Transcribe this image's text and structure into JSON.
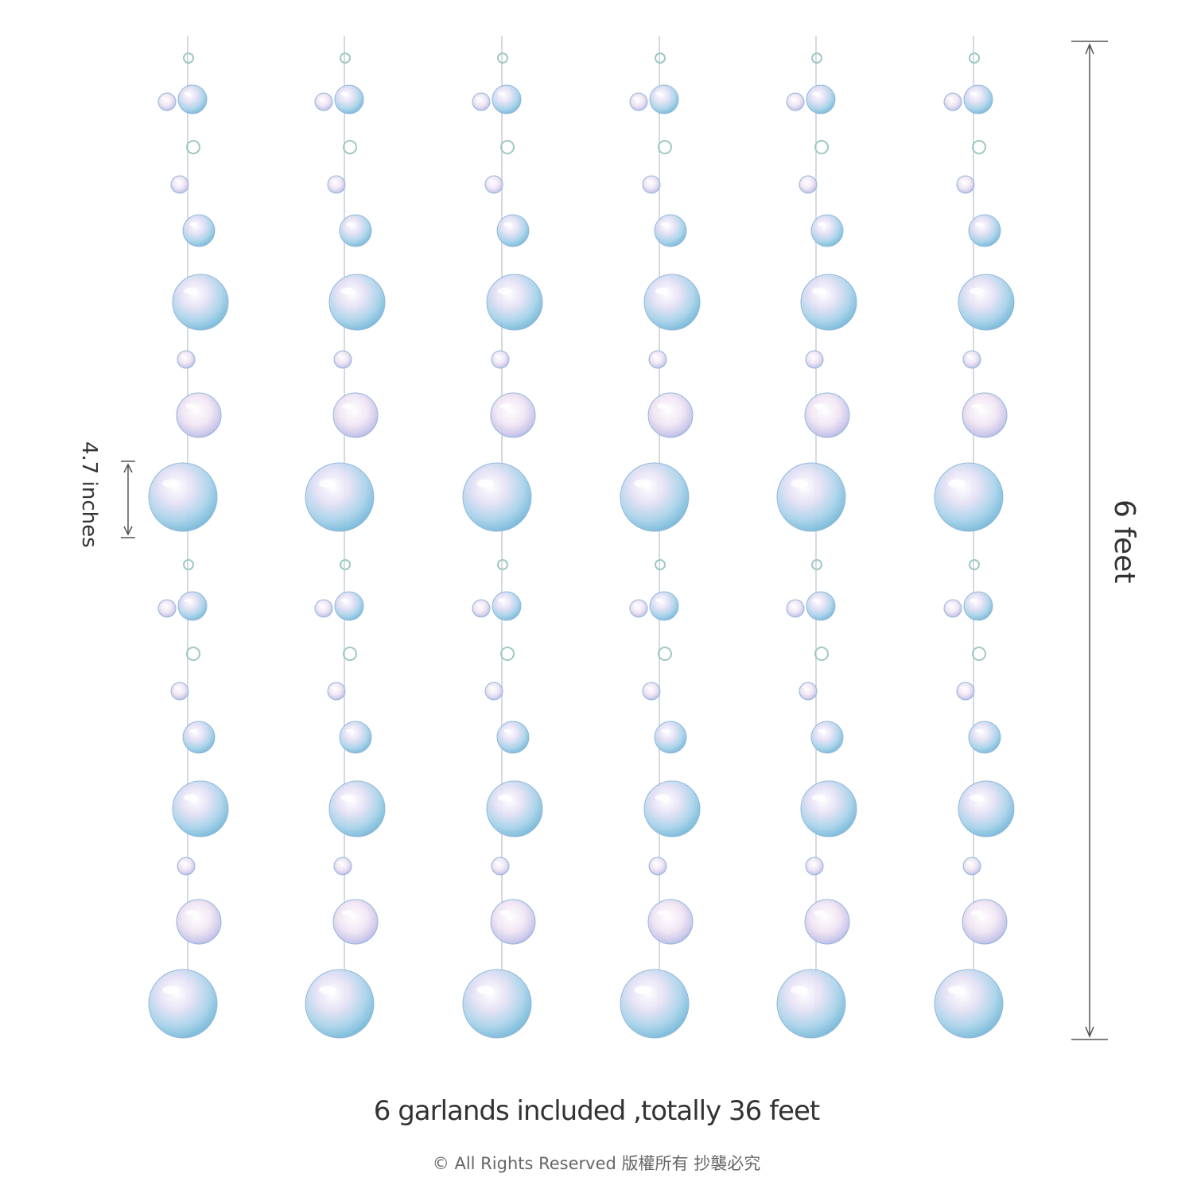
{
  "dimensions": {
    "short": "4.7 inches",
    "long": "6 feet"
  },
  "caption": "6 garlands included ,totally 36 feet",
  "copyright": "© All Rights Reserved 版權所有 抄襲必究"
}
